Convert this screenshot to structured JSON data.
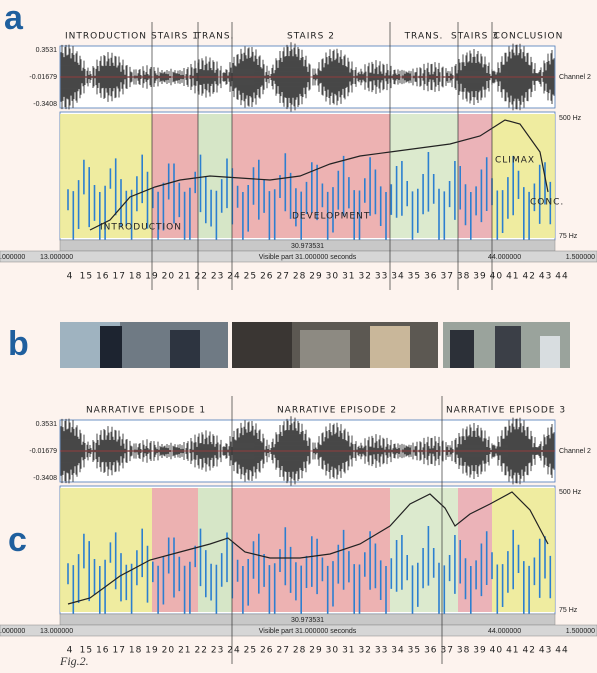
{
  "letters": {
    "a": "a",
    "b": "b",
    "c": "c"
  },
  "panel_a": {
    "sections": [
      "INTRODUCTION",
      "STAIRS 1",
      "TRANS.",
      "STAIRS 2",
      "TRANS.",
      "STAIRS 3",
      "CONCLUSION"
    ],
    "waveform_axis": [
      "0.3531",
      "-0.01679",
      "-0.3408"
    ],
    "channel": "Channel 2",
    "freq_top": "500 Hz",
    "freq_bottom": "75 Hz",
    "annotations": [
      "INTRODUCTION",
      "DEVELOPMENT",
      "CLIMAX",
      "CONC."
    ],
    "selection": "30.973531",
    "time_bar": [
      ".000000",
      "13.000000",
      "Visible part 31.000000 seconds",
      "44.000000",
      "1.500000"
    ],
    "seconds": [
      "4",
      "15",
      "16",
      "17",
      "18",
      "19",
      "20",
      "21",
      "22",
      "23",
      "24",
      "25",
      "26",
      "27",
      "28",
      "29",
      "30",
      "31",
      "32",
      "33",
      "34",
      "35",
      "36",
      "37",
      "38",
      "39",
      "40",
      "41",
      "42",
      "43",
      "44"
    ]
  },
  "panel_c": {
    "episodes": [
      "NARRATIVE EPISODE 1",
      "NARRATIVE EPISODE 2",
      "NARRATIVE EPISODE 3"
    ],
    "waveform_axis": [
      "0.3531",
      "-0.01679",
      "-0.3408"
    ],
    "channel": "Channel 2",
    "freq_top": "500 Hz",
    "freq_bottom": "75 Hz",
    "selection": "30.973531",
    "time_bar": [
      ".000000",
      "13.000000",
      "Visible part 31.000000 seconds",
      "44.000000",
      "1.500000"
    ],
    "seconds": [
      "4",
      "15",
      "16",
      "17",
      "18",
      "19",
      "20",
      "21",
      "22",
      "23",
      "24",
      "25",
      "26",
      "27",
      "28",
      "29",
      "30",
      "31",
      "32",
      "33",
      "34",
      "35",
      "36",
      "37",
      "38",
      "39",
      "40",
      "41",
      "42",
      "43",
      "44"
    ]
  },
  "caption": "Fig.2."
}
